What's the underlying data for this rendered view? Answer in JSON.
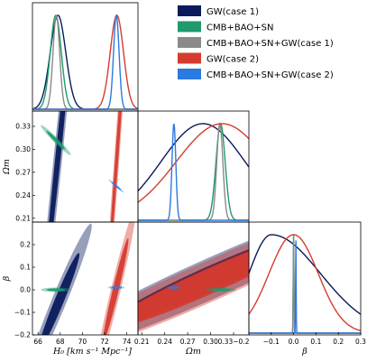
{
  "chart_data": {
    "type": "triangle",
    "parameters": [
      {
        "key": "H0",
        "label": "H₀ [km s⁻¹ Mpc⁻¹]",
        "range": [
          65.5,
          75
        ],
        "ticks": [
          66,
          68,
          70,
          72,
          74
        ]
      },
      {
        "key": "Om",
        "label": "Ωm",
        "range": [
          0.205,
          0.35
        ],
        "ticks": [
          0.21,
          0.24,
          0.27,
          0.3,
          0.33
        ]
      },
      {
        "key": "beta",
        "label": "β",
        "range": [
          -0.2,
          0.3
        ],
        "ticks": [
          -0.2,
          -0.1,
          0.0,
          0.1,
          0.2,
          0.3
        ]
      }
    ],
    "tick_labels": {
      "H0": [
        "66",
        "68",
        "70",
        "72",
        "74"
      ],
      "Om_x": [
        "0.21",
        "0.24",
        "0.27",
        "0.30",
        "0.33−0.2"
      ],
      "Om_y": [
        "0.33",
        "0.30",
        "0.27",
        "0.24",
        "0.21"
      ],
      "beta_x": [
        "−0.1",
        "0.0",
        "0.1",
        "0.2",
        "0.3"
      ],
      "beta_y": [
        "0.2",
        "0.1",
        "0.0",
        "−0.1",
        "−0.2"
      ]
    },
    "axis_labels": {
      "H0": "H₀ [km s⁻¹ Mpc⁻¹]",
      "Om": "Ωm",
      "beta": "β"
    },
    "legend_position": "top-right",
    "series": [
      {
        "name": "GW(case 1)",
        "color": "#0a1a5c",
        "H0": {
          "mean": 67.8,
          "sigma": 0.7
        },
        "Om": {
          "mean": 0.29,
          "sigma": 0.055
        },
        "beta": {
          "mean": -0.1,
          "sigma": 0.1,
          "skew": true
        },
        "contours": {
          "H0_Om": {
            "center": [
              67.8,
              0.29
            ],
            "sx": 0.8,
            "sy": 0.11,
            "rho": 0.98
          },
          "H0_beta": {
            "center": [
              67.9,
              -0.05
            ],
            "sx": 1.2,
            "sy": 0.14,
            "rho": 0.97
          },
          "Om_beta": {
            "center": [
              0.3,
              0.05
            ],
            "sx": 0.09,
            "sy": 0.14,
            "rho": 0.96
          }
        }
      },
      {
        "name": "CMB+BAO+SN",
        "color": "#1f9a6e",
        "H0": {
          "mean": 67.6,
          "sigma": 0.5
        },
        "Om": {
          "mean": 0.313,
          "sigma": 0.006
        },
        "beta": {
          "mean": 0.0,
          "sigma": 0.0017
        },
        "contours": {
          "H0_Om": {
            "center": [
              67.6,
              0.312
            ],
            "sx": 0.55,
            "sy": 0.008,
            "rho": -0.97
          },
          "H0_beta": {
            "center": [
              67.6,
              0.0
            ],
            "sx": 0.55,
            "sy": 0.004,
            "rho": 0.0
          },
          "Om_beta": {
            "center": [
              0.313,
              0.0
            ],
            "sx": 0.008,
            "sy": 0.004,
            "rho": 0.0
          }
        }
      },
      {
        "name": "CMB+BAO+SN+GW(case 1)",
        "color": "#8a8a8a",
        "H0": {
          "mean": 67.65,
          "sigma": 0.3
        },
        "Om": {
          "mean": 0.312,
          "sigma": 0.004
        },
        "beta": {
          "mean": 0.0,
          "sigma": 0.0015
        },
        "contours": {}
      },
      {
        "name": "GW(case 2)",
        "color": "#d63b2f",
        "H0": {
          "mean": 73.1,
          "sigma": 0.6
        },
        "Om": {
          "mean": 0.315,
          "sigma": 0.06
        },
        "beta": {
          "mean": 0.0,
          "sigma": 0.11
        },
        "contours": {
          "H0_Om": {
            "center": [
              73.1,
              0.29
            ],
            "sx": 0.55,
            "sy": 0.11,
            "rho": 0.985
          },
          "H0_beta": {
            "center": [
              73.0,
              0.0
            ],
            "sx": 0.75,
            "sy": 0.15,
            "rho": 0.97
          },
          "Om_beta": {
            "center": [
              0.3,
              0.04
            ],
            "sx": 0.09,
            "sy": 0.14,
            "rho": 0.96
          }
        }
      },
      {
        "name": "CMB+BAO+SN+GW(case 2)",
        "color": "#2b7ae0",
        "H0": {
          "mean": 73.05,
          "sigma": 0.25
        },
        "Om": {
          "mean": 0.252,
          "sigma": 0.0025
        },
        "beta": {
          "mean": 0.01,
          "sigma": 0.0012
        },
        "contours": {
          "H0_Om": {
            "center": [
              73.05,
              0.252
            ],
            "sx": 0.28,
            "sy": 0.0035,
            "rho": -0.97
          },
          "H0_beta": {
            "center": [
              73.05,
              0.01
            ],
            "sx": 0.3,
            "sy": 0.003,
            "rho": 0.0
          },
          "Om_beta": {
            "center": [
              0.252,
              0.01
            ],
            "sx": 0.004,
            "sy": 0.003,
            "rho": 0.0
          }
        }
      }
    ]
  }
}
